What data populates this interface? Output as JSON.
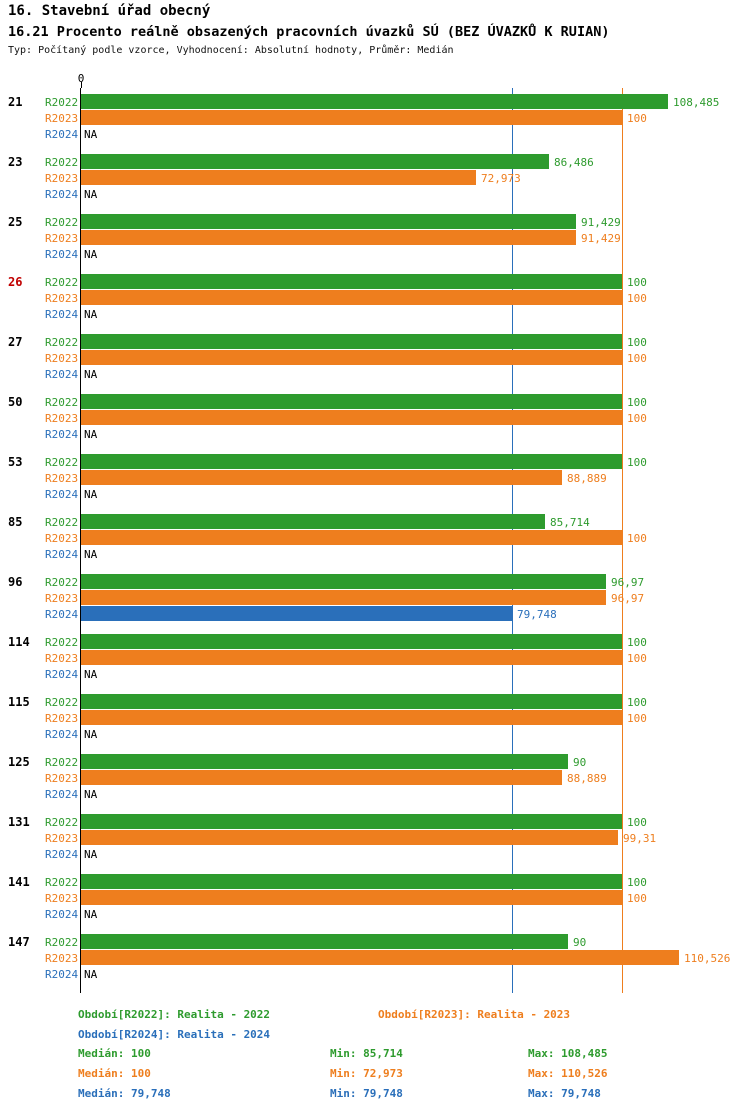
{
  "header": {
    "title": "16. Stavební úřad obecný",
    "subtitle": "16.21 Procento reálně obsazených pracovních úvazků SÚ (BEZ ÚVAZKŮ K RUIAN)",
    "meta": "Typ: Počítaný podle vzorce, Vyhodnocení: Absolutní hodnoty, Průměr: Medián"
  },
  "colors": {
    "green": "#2E9B2E",
    "orange": "#EE7E1E",
    "blue": "#2A6FBA",
    "red": "#C00000",
    "axis": "#000000"
  },
  "chart_data": {
    "type": "bar",
    "orientation": "horizontal",
    "title": "16.21 Procento reálně obsazených pracovních úvazků SÚ (BEZ ÚVAZKŮ K RUIAN)",
    "value_axis": {
      "zero_label": "0",
      "min": 0,
      "max": 111
    },
    "series_labels": [
      "R2022",
      "R2023",
      "R2024"
    ],
    "reference_lines": [
      {
        "value": 79.748,
        "series": "R2024",
        "color": "blue"
      },
      {
        "value": 100,
        "series": "R2023",
        "color": "orange"
      }
    ],
    "groups": [
      {
        "id": "21",
        "highlight": false,
        "values": [
          108.485,
          100,
          null
        ],
        "labels": [
          "108,485",
          "100",
          "NA"
        ]
      },
      {
        "id": "23",
        "highlight": false,
        "values": [
          86.486,
          72.973,
          null
        ],
        "labels": [
          "86,486",
          "72,973",
          "NA"
        ]
      },
      {
        "id": "25",
        "highlight": false,
        "values": [
          91.429,
          91.429,
          null
        ],
        "labels": [
          "91,429",
          "91,429",
          "NA"
        ]
      },
      {
        "id": "26",
        "highlight": true,
        "values": [
          100,
          100,
          null
        ],
        "labels": [
          "100",
          "100",
          "NA"
        ]
      },
      {
        "id": "27",
        "highlight": false,
        "values": [
          100,
          100,
          null
        ],
        "labels": [
          "100",
          "100",
          "NA"
        ]
      },
      {
        "id": "50",
        "highlight": false,
        "values": [
          100,
          100,
          null
        ],
        "labels": [
          "100",
          "100",
          "NA"
        ]
      },
      {
        "id": "53",
        "highlight": false,
        "values": [
          100,
          88.889,
          null
        ],
        "labels": [
          "100",
          "88,889",
          "NA"
        ]
      },
      {
        "id": "85",
        "highlight": false,
        "values": [
          85.714,
          100,
          null
        ],
        "labels": [
          "85,714",
          "100",
          "NA"
        ]
      },
      {
        "id": "96",
        "highlight": false,
        "values": [
          96.97,
          96.97,
          79.748
        ],
        "labels": [
          "96,97",
          "96,97",
          "79,748"
        ]
      },
      {
        "id": "114",
        "highlight": false,
        "values": [
          100,
          100,
          null
        ],
        "labels": [
          "100",
          "100",
          "NA"
        ]
      },
      {
        "id": "115",
        "highlight": false,
        "values": [
          100,
          100,
          null
        ],
        "labels": [
          "100",
          "100",
          "NA"
        ]
      },
      {
        "id": "125",
        "highlight": false,
        "values": [
          90,
          88.889,
          null
        ],
        "labels": [
          "90",
          "88,889",
          "NA"
        ]
      },
      {
        "id": "131",
        "highlight": false,
        "values": [
          100,
          99.31,
          null
        ],
        "labels": [
          "100",
          "99,31",
          "NA"
        ]
      },
      {
        "id": "141",
        "highlight": false,
        "values": [
          100,
          100,
          null
        ],
        "labels": [
          "100",
          "100",
          "NA"
        ]
      },
      {
        "id": "147",
        "highlight": false,
        "values": [
          90,
          110.526,
          null
        ],
        "labels": [
          "90",
          "110,526",
          "NA"
        ]
      }
    ]
  },
  "legend": [
    {
      "label": "Období[R2022]: Realita - 2022",
      "color": "green"
    },
    {
      "label": "Období[R2023]: Realita - 2023",
      "color": "orange"
    },
    {
      "label": "Období[R2024]: Realita - 2024",
      "color": "blue"
    }
  ],
  "stats": [
    {
      "color": "green",
      "median": "Medián: 100",
      "min": "Min: 85,714",
      "max": "Max: 108,485"
    },
    {
      "color": "orange",
      "median": "Medián: 100",
      "min": "Min: 72,973",
      "max": "Max: 110,526"
    },
    {
      "color": "blue",
      "median": "Medián: 79,748",
      "min": "Min: 79,748",
      "max": "Max: 79,748"
    }
  ]
}
